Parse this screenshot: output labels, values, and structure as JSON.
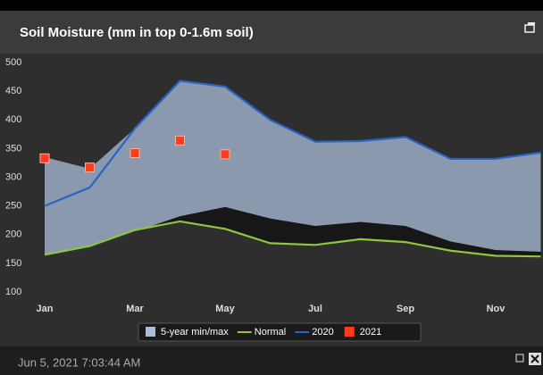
{
  "chart_data": {
    "type": "line",
    "title": "Soil Moisture (mm in top 0-1.6m soil)",
    "timestamp": "Jun 5, 2021 7:03:44 AM",
    "categories": [
      "Jan",
      null,
      "Mar",
      null,
      "May",
      null,
      "Jul",
      null,
      "Sep",
      null,
      "Nov",
      null
    ],
    "ylim": [
      100,
      500
    ],
    "yticks": [
      100,
      150,
      200,
      250,
      300,
      350,
      400,
      450,
      500
    ],
    "range": {
      "name": "5-year min/max",
      "color": "#a9bdd8",
      "low": [
        163,
        175,
        205,
        232,
        248,
        228,
        215,
        222,
        215,
        188,
        173,
        170
      ],
      "high": [
        335,
        315,
        385,
        468,
        458,
        400,
        362,
        363,
        370,
        332,
        332,
        343
      ]
    },
    "series": [
      {
        "name": "Normal",
        "color": "#8dc63f",
        "kind": "line",
        "values": [
          165,
          180,
          208,
          223,
          210,
          185,
          182,
          192,
          187,
          172,
          163,
          162
        ]
      },
      {
        "name": "2020",
        "color": "#2a63c4",
        "kind": "line",
        "values": [
          250,
          282,
          385,
          468,
          458,
          400,
          362,
          363,
          370,
          332,
          332,
          343
        ]
      },
      {
        "name": "2021",
        "color": "#ff3d1a",
        "kind": "marker",
        "values": [
          333,
          317,
          342,
          364,
          340,
          null,
          null,
          null,
          null,
          null,
          null,
          null
        ]
      }
    ]
  }
}
